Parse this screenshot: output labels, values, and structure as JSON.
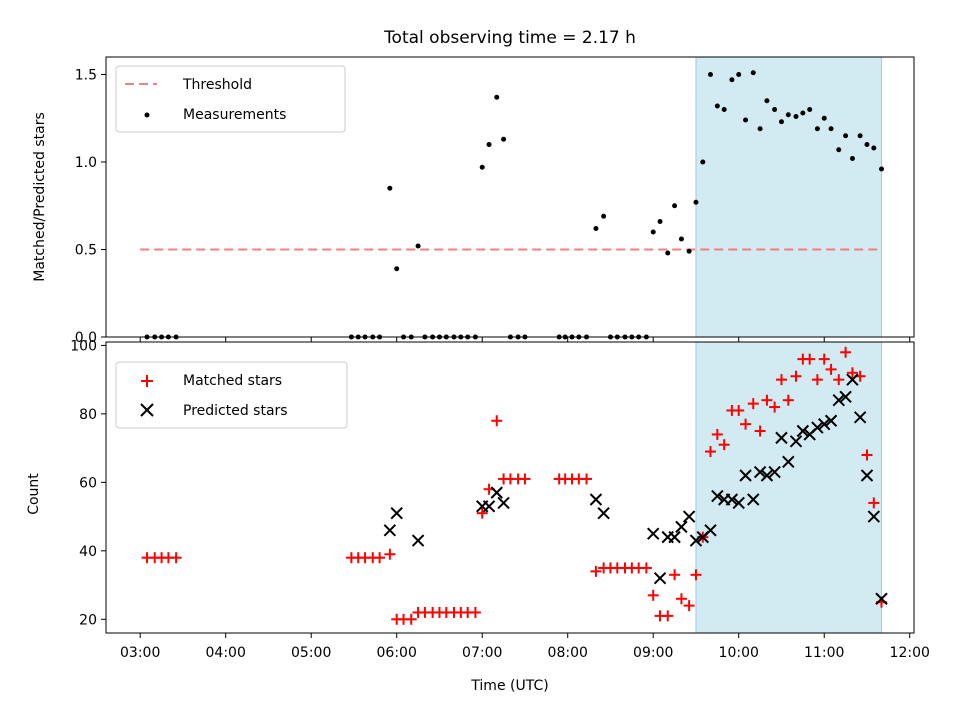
{
  "title": "Total observing time = 2.17 h",
  "colors": {
    "threshold": "#f08080",
    "measurement": "#000000",
    "matched": "#ff0000",
    "predicted": "#000000",
    "highlight": "#add8e6"
  },
  "chart_data": [
    {
      "type": "scatter",
      "ylabel": "Matched/Predicted stars",
      "xlim": [
        2.6,
        12.05
      ],
      "ylim": [
        0,
        1.6
      ],
      "yticks": [
        0.0,
        0.5,
        1.0,
        1.5
      ],
      "ytick_labels": [
        "0.0",
        "0.5",
        "1.0",
        "1.5"
      ],
      "grid": false,
      "legend": "upper left",
      "shaded_interval": [
        9.5,
        11.67
      ],
      "threshold": {
        "name": "Threshold",
        "y": 0.5,
        "x": [
          3.0,
          11.67
        ]
      },
      "series": [
        {
          "name": "Measurements",
          "marker": "dot",
          "points": [
            [
              3.08,
              0
            ],
            [
              3.17,
              0
            ],
            [
              3.25,
              0
            ],
            [
              3.33,
              0
            ],
            [
              3.42,
              0
            ],
            [
              5.47,
              0
            ],
            [
              5.55,
              0
            ],
            [
              5.63,
              0
            ],
            [
              5.72,
              0
            ],
            [
              5.8,
              0
            ],
            [
              5.92,
              0.85
            ],
            [
              6.0,
              0.39
            ],
            [
              6.08,
              0
            ],
            [
              6.17,
              0
            ],
            [
              6.25,
              0.52
            ],
            [
              6.33,
              0
            ],
            [
              6.42,
              0
            ],
            [
              6.5,
              0
            ],
            [
              6.58,
              0
            ],
            [
              6.67,
              0
            ],
            [
              6.75,
              0
            ],
            [
              6.83,
              0
            ],
            [
              6.92,
              0
            ],
            [
              7.0,
              0.97
            ],
            [
              7.08,
              1.1
            ],
            [
              7.17,
              1.37
            ],
            [
              7.25,
              1.13
            ],
            [
              7.33,
              0
            ],
            [
              7.42,
              0
            ],
            [
              7.5,
              0
            ],
            [
              7.9,
              0
            ],
            [
              7.97,
              0
            ],
            [
              8.05,
              0
            ],
            [
              8.13,
              0
            ],
            [
              8.22,
              0
            ],
            [
              8.33,
              0.62
            ],
            [
              8.42,
              0.69
            ],
            [
              8.5,
              0
            ],
            [
              8.58,
              0
            ],
            [
              8.67,
              0
            ],
            [
              8.75,
              0
            ],
            [
              8.83,
              0
            ],
            [
              8.92,
              0
            ],
            [
              9.0,
              0.6
            ],
            [
              9.08,
              0.66
            ],
            [
              9.17,
              0.48
            ],
            [
              9.25,
              0.75
            ],
            [
              9.33,
              0.56
            ],
            [
              9.42,
              0.49
            ],
            [
              9.5,
              0.77
            ],
            [
              9.58,
              1.0
            ],
            [
              9.67,
              1.5
            ],
            [
              9.75,
              1.32
            ],
            [
              9.83,
              1.3
            ],
            [
              9.92,
              1.47
            ],
            [
              10.0,
              1.5
            ],
            [
              10.08,
              1.24
            ],
            [
              10.17,
              1.51
            ],
            [
              10.25,
              1.19
            ],
            [
              10.33,
              1.35
            ],
            [
              10.42,
              1.3
            ],
            [
              10.5,
              1.23
            ],
            [
              10.58,
              1.27
            ],
            [
              10.67,
              1.26
            ],
            [
              10.75,
              1.28
            ],
            [
              10.83,
              1.3
            ],
            [
              10.92,
              1.19
            ],
            [
              11.0,
              1.25
            ],
            [
              11.08,
              1.19
            ],
            [
              11.17,
              1.07
            ],
            [
              11.25,
              1.15
            ],
            [
              11.33,
              1.02
            ],
            [
              11.42,
              1.15
            ],
            [
              11.5,
              1.1
            ],
            [
              11.58,
              1.08
            ],
            [
              11.67,
              0.96
            ]
          ]
        }
      ]
    },
    {
      "type": "scatter",
      "ylabel": "Count",
      "xlabel": "Time (UTC)",
      "xlim": [
        2.6,
        12.05
      ],
      "xticks": [
        3,
        4,
        5,
        6,
        7,
        8,
        9,
        10,
        11,
        12
      ],
      "xtick_labels": [
        "03:00",
        "04:00",
        "05:00",
        "06:00",
        "07:00",
        "08:00",
        "09:00",
        "10:00",
        "11:00",
        "12:00"
      ],
      "ylim": [
        16,
        101
      ],
      "yticks": [
        20,
        40,
        60,
        80,
        100
      ],
      "ytick_labels": [
        "20",
        "40",
        "60",
        "80",
        "100"
      ],
      "grid": false,
      "legend": "upper left",
      "shaded_interval": [
        9.5,
        11.67
      ],
      "series": [
        {
          "name": "Matched stars",
          "marker": "plus",
          "points": [
            [
              3.08,
              38
            ],
            [
              3.17,
              38
            ],
            [
              3.25,
              38
            ],
            [
              3.33,
              38
            ],
            [
              3.42,
              38
            ],
            [
              5.47,
              38
            ],
            [
              5.55,
              38
            ],
            [
              5.63,
              38
            ],
            [
              5.72,
              38
            ],
            [
              5.8,
              38
            ],
            [
              5.92,
              39
            ],
            [
              6.0,
              20
            ],
            [
              6.08,
              20
            ],
            [
              6.17,
              20
            ],
            [
              6.25,
              22
            ],
            [
              6.33,
              22
            ],
            [
              6.42,
              22
            ],
            [
              6.5,
              22
            ],
            [
              6.58,
              22
            ],
            [
              6.67,
              22
            ],
            [
              6.75,
              22
            ],
            [
              6.83,
              22
            ],
            [
              6.92,
              22
            ],
            [
              7.0,
              51
            ],
            [
              7.08,
              58
            ],
            [
              7.17,
              78
            ],
            [
              7.25,
              61
            ],
            [
              7.33,
              61
            ],
            [
              7.42,
              61
            ],
            [
              7.5,
              61
            ],
            [
              7.9,
              61
            ],
            [
              7.97,
              61
            ],
            [
              8.05,
              61
            ],
            [
              8.13,
              61
            ],
            [
              8.22,
              61
            ],
            [
              8.33,
              34
            ],
            [
              8.42,
              35
            ],
            [
              8.5,
              35
            ],
            [
              8.58,
              35
            ],
            [
              8.67,
              35
            ],
            [
              8.75,
              35
            ],
            [
              8.83,
              35
            ],
            [
              8.92,
              35
            ],
            [
              9.0,
              27
            ],
            [
              9.08,
              21
            ],
            [
              9.17,
              21
            ],
            [
              9.25,
              33
            ],
            [
              9.33,
              26
            ],
            [
              9.42,
              24
            ],
            [
              9.5,
              33
            ],
            [
              9.58,
              44
            ],
            [
              9.67,
              69
            ],
            [
              9.75,
              74
            ],
            [
              9.83,
              71
            ],
            [
              9.92,
              81
            ],
            [
              10.0,
              81
            ],
            [
              10.08,
              77
            ],
            [
              10.17,
              83
            ],
            [
              10.25,
              75
            ],
            [
              10.33,
              84
            ],
            [
              10.42,
              82
            ],
            [
              10.5,
              90
            ],
            [
              10.58,
              84
            ],
            [
              10.67,
              91
            ],
            [
              10.75,
              96
            ],
            [
              10.83,
              96
            ],
            [
              10.92,
              90
            ],
            [
              11.0,
              96
            ],
            [
              11.08,
              93
            ],
            [
              11.17,
              90
            ],
            [
              11.25,
              98
            ],
            [
              11.33,
              92
            ],
            [
              11.42,
              91
            ],
            [
              11.5,
              68
            ],
            [
              11.58,
              54
            ],
            [
              11.67,
              25
            ]
          ]
        },
        {
          "name": "Predicted stars",
          "marker": "x",
          "points": [
            [
              5.92,
              46
            ],
            [
              6.0,
              51
            ],
            [
              6.25,
              43
            ],
            [
              7.0,
              53
            ],
            [
              7.08,
              53
            ],
            [
              7.17,
              57
            ],
            [
              7.25,
              54
            ],
            [
              8.33,
              55
            ],
            [
              8.42,
              51
            ],
            [
              9.0,
              45
            ],
            [
              9.08,
              32
            ],
            [
              9.17,
              44
            ],
            [
              9.25,
              44
            ],
            [
              9.33,
              47
            ],
            [
              9.42,
              50
            ],
            [
              9.5,
              43
            ],
            [
              9.58,
              44
            ],
            [
              9.67,
              46
            ],
            [
              9.75,
              56
            ],
            [
              9.83,
              55
            ],
            [
              9.92,
              55
            ],
            [
              10.0,
              54
            ],
            [
              10.08,
              62
            ],
            [
              10.17,
              55
            ],
            [
              10.25,
              63
            ],
            [
              10.33,
              62
            ],
            [
              10.42,
              63
            ],
            [
              10.5,
              73
            ],
            [
              10.58,
              66
            ],
            [
              10.67,
              72
            ],
            [
              10.75,
              75
            ],
            [
              10.83,
              74
            ],
            [
              10.92,
              76
            ],
            [
              11.0,
              77
            ],
            [
              11.08,
              78
            ],
            [
              11.17,
              84
            ],
            [
              11.25,
              85
            ],
            [
              11.33,
              90
            ],
            [
              11.42,
              79
            ],
            [
              11.5,
              62
            ],
            [
              11.58,
              50
            ],
            [
              11.67,
              26
            ]
          ]
        }
      ]
    }
  ]
}
